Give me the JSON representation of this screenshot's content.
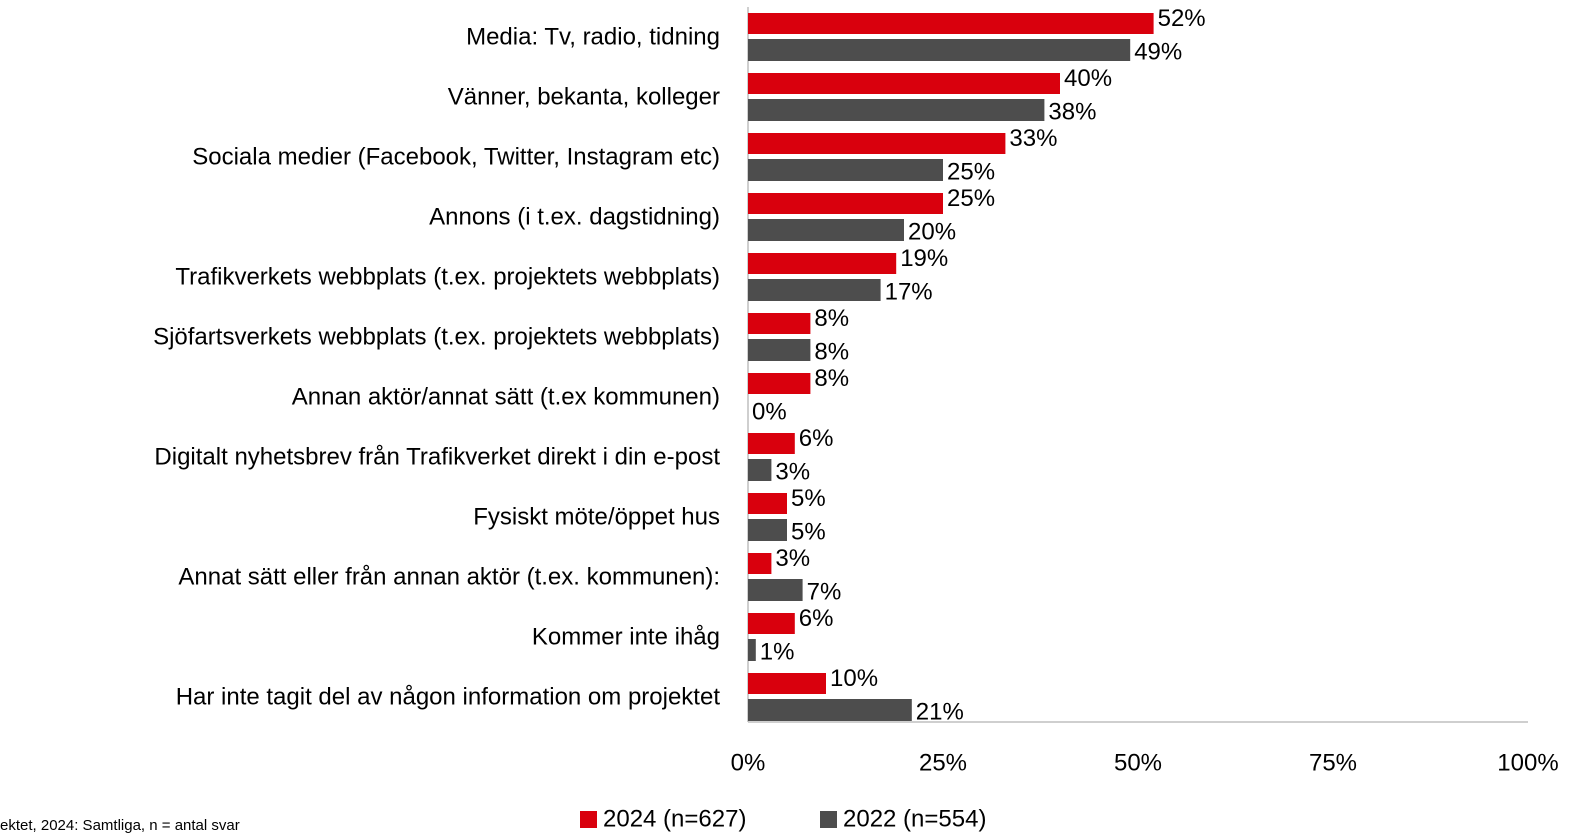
{
  "chart_data": {
    "type": "barh",
    "categories": [
      "Media: Tv, radio, tidning",
      "Vänner, bekanta, kolleger",
      "Sociala medier (Facebook, Twitter, Instagram etc)",
      "Annons (i t.ex. dagstidning)",
      "Trafikverkets webbplats (t.ex. projektets webbplats)",
      "Sjöfartsverkets webbplats (t.ex. projektets webbplats)",
      "Annan aktör/annat sätt (t.ex kommunen)",
      "Digitalt nyhetsbrev från Trafikverket direkt i din e-post",
      "Fysiskt möte/öppet hus",
      "Annat sätt eller från annan aktör (t.ex. kommunen):",
      "Kommer inte ihåg",
      "Har inte tagit del av någon information om projektet"
    ],
    "series": [
      {
        "name": "2024 (n=627)",
        "color": "#d9000d",
        "values": [
          52,
          40,
          33,
          25,
          19,
          8,
          8,
          6,
          5,
          3,
          6,
          10
        ],
        "value_labels": [
          "52%",
          "40%",
          "33%",
          "25%",
          "19%",
          "8%",
          "8%",
          "6%",
          "5%",
          "3%",
          "6%",
          "10%"
        ]
      },
      {
        "name": "2022 (n=554)",
        "color": "#4d4d4d",
        "values": [
          49,
          38,
          25,
          20,
          17,
          8,
          0,
          3,
          5,
          7,
          1,
          21
        ],
        "value_labels": [
          "49%",
          "38%",
          "25%",
          "20%",
          "17%",
          "8%",
          "0%",
          "3%",
          "5%",
          "7%",
          "1%",
          "21%"
        ]
      }
    ],
    "xlim": [
      0,
      100
    ],
    "xticks": [
      {
        "value": 0,
        "label": "0%"
      },
      {
        "value": 25,
        "label": "25%"
      },
      {
        "value": 50,
        "label": "50%"
      },
      {
        "value": 75,
        "label": "75%"
      },
      {
        "value": 100,
        "label": "100%"
      }
    ],
    "legend": "bottom",
    "note": "ektet, 2024: Samtliga, n = antal svar"
  }
}
